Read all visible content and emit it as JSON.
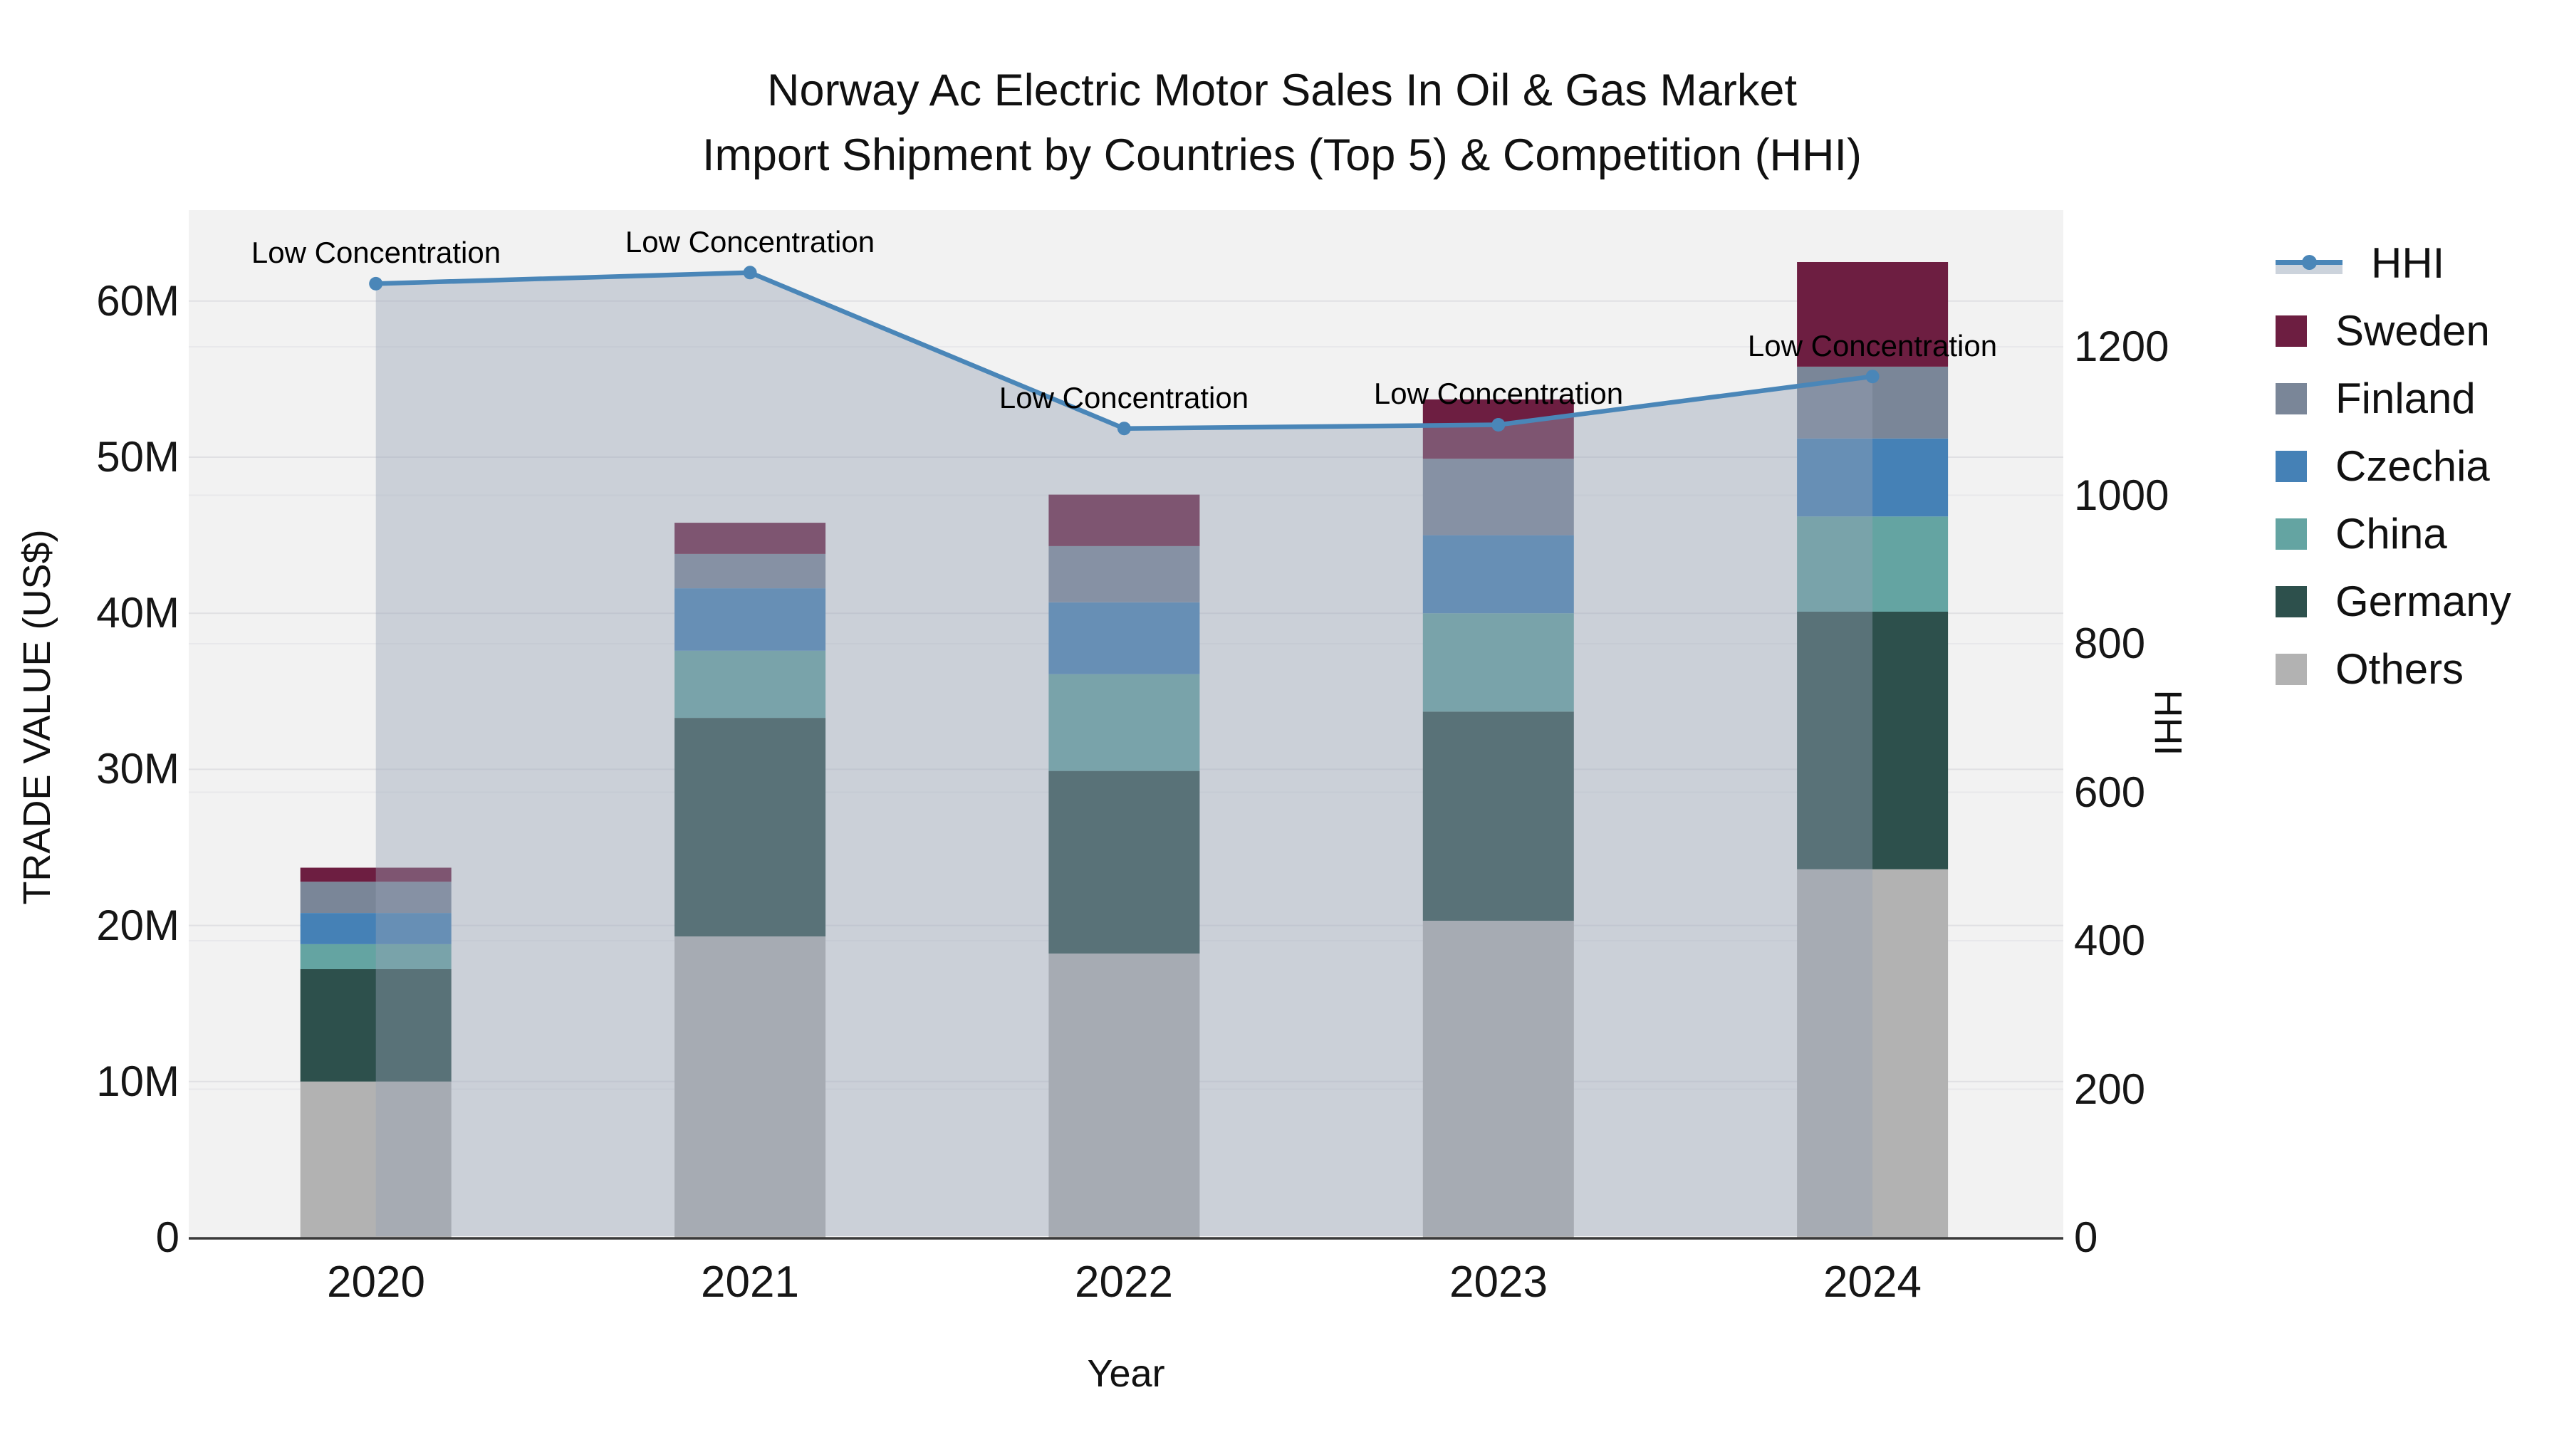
{
  "title": {
    "line1": "Norway Ac Electric Motor Sales In Oil & Gas Market",
    "line2": "Import Shipment by Countries (Top 5) & Competition (HHI)"
  },
  "axes": {
    "x": {
      "title": "Year"
    },
    "y_left": {
      "title": "TRADE VALUE (US$)",
      "tick_labels": [
        "0",
        "10M",
        "20M",
        "30M",
        "40M",
        "50M",
        "60M"
      ]
    },
    "y_right": {
      "title": "HHI",
      "tick_labels": [
        "0",
        "200",
        "400",
        "600",
        "800",
        "1000",
        "1200"
      ]
    }
  },
  "legend": {
    "items": [
      {
        "label": "HHI",
        "type": "line",
        "color": "#4a86b8"
      },
      {
        "label": "Sweden",
        "type": "swatch",
        "color": "#6d1e41"
      },
      {
        "label": "Finland",
        "type": "swatch",
        "color": "#7a8698"
      },
      {
        "label": "Czechia",
        "type": "swatch",
        "color": "#4581b6"
      },
      {
        "label": "China",
        "type": "swatch",
        "color": "#64a4a2"
      },
      {
        "label": "Germany",
        "type": "swatch",
        "color": "#2d504c"
      },
      {
        "label": "Others",
        "type": "swatch",
        "color": "#b2b2b2"
      }
    ]
  },
  "chart_data": {
    "type": "bar",
    "subtype": "stacked-bars-with-hhi-line",
    "title": "Norway Ac Electric Motor Sales In Oil & Gas Market — Import Shipment by Countries (Top 5) & Competition (HHI)",
    "categories": [
      "2020",
      "2021",
      "2022",
      "2023",
      "2024"
    ],
    "xlabel": "Year",
    "ylabel_left": "TRADE VALUE (US$)",
    "ylabel_right": "HHI",
    "ylim_left_musd": [
      0,
      66
    ],
    "ylim_right_hhi": [
      0,
      1385
    ],
    "grid": true,
    "legend_position": "right-top",
    "plot_bg": "#f2f2f2",
    "bar_series": [
      {
        "name": "Others",
        "color": "#b2b2b2",
        "values_musd": [
          10.0,
          19.3,
          18.2,
          20.3,
          23.6
        ]
      },
      {
        "name": "Germany",
        "color": "#2d504c",
        "values_musd": [
          7.2,
          14.0,
          11.7,
          13.4,
          16.5
        ]
      },
      {
        "name": "China",
        "color": "#64a4a2",
        "values_musd": [
          1.6,
          4.3,
          6.2,
          6.3,
          6.1
        ]
      },
      {
        "name": "Czechia",
        "color": "#4581b6",
        "values_musd": [
          2.0,
          4.0,
          4.6,
          5.0,
          5.0
        ]
      },
      {
        "name": "Finland",
        "color": "#7a8698",
        "values_musd": [
          2.0,
          2.2,
          3.6,
          4.9,
          4.6
        ]
      },
      {
        "name": "Sweden",
        "color": "#6d1e41",
        "values_musd": [
          0.9,
          2.0,
          3.3,
          3.8,
          6.7
        ]
      }
    ],
    "bar_totals_musd": [
      23.7,
      45.8,
      47.6,
      53.7,
      62.5
    ],
    "line_series": {
      "name": "HHI",
      "color": "#4a86b8",
      "values": [
        1285,
        1300,
        1090,
        1095,
        1160
      ],
      "area_fill": "rgba(150,162,180,0.42)"
    },
    "annotations": [
      "Low Concentration",
      "Low Concentration",
      "Low Concentration",
      "Low Concentration",
      "Low Concentration"
    ]
  }
}
